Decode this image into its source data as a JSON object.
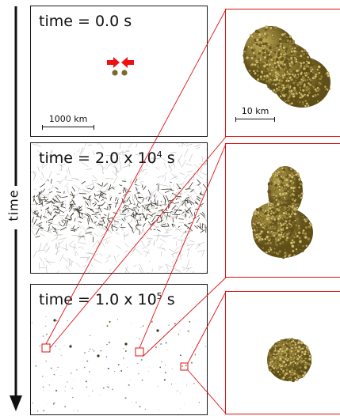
{
  "panels": [
    {
      "time_prefix": "time = ",
      "time_mantissa": "0.0 s",
      "time_exp": "",
      "time_unit": ""
    },
    {
      "time_prefix": "time = ",
      "time_mantissa": "2.0 x 10",
      "time_exp": "4",
      "time_unit": " s"
    },
    {
      "time_prefix": "time = ",
      "time_mantissa": "1.0 x 10",
      "time_exp": "5",
      "time_unit": " s"
    }
  ],
  "scale_left": "1000 km",
  "scale_right": "10 km",
  "axis_label": "time",
  "colors": {
    "highlight": "#e01010",
    "body_fill": "#a08a3a",
    "body_dark": "#5e4e18",
    "frame": "#1a1a1a",
    "velocity_arrow": "#ee1111"
  }
}
